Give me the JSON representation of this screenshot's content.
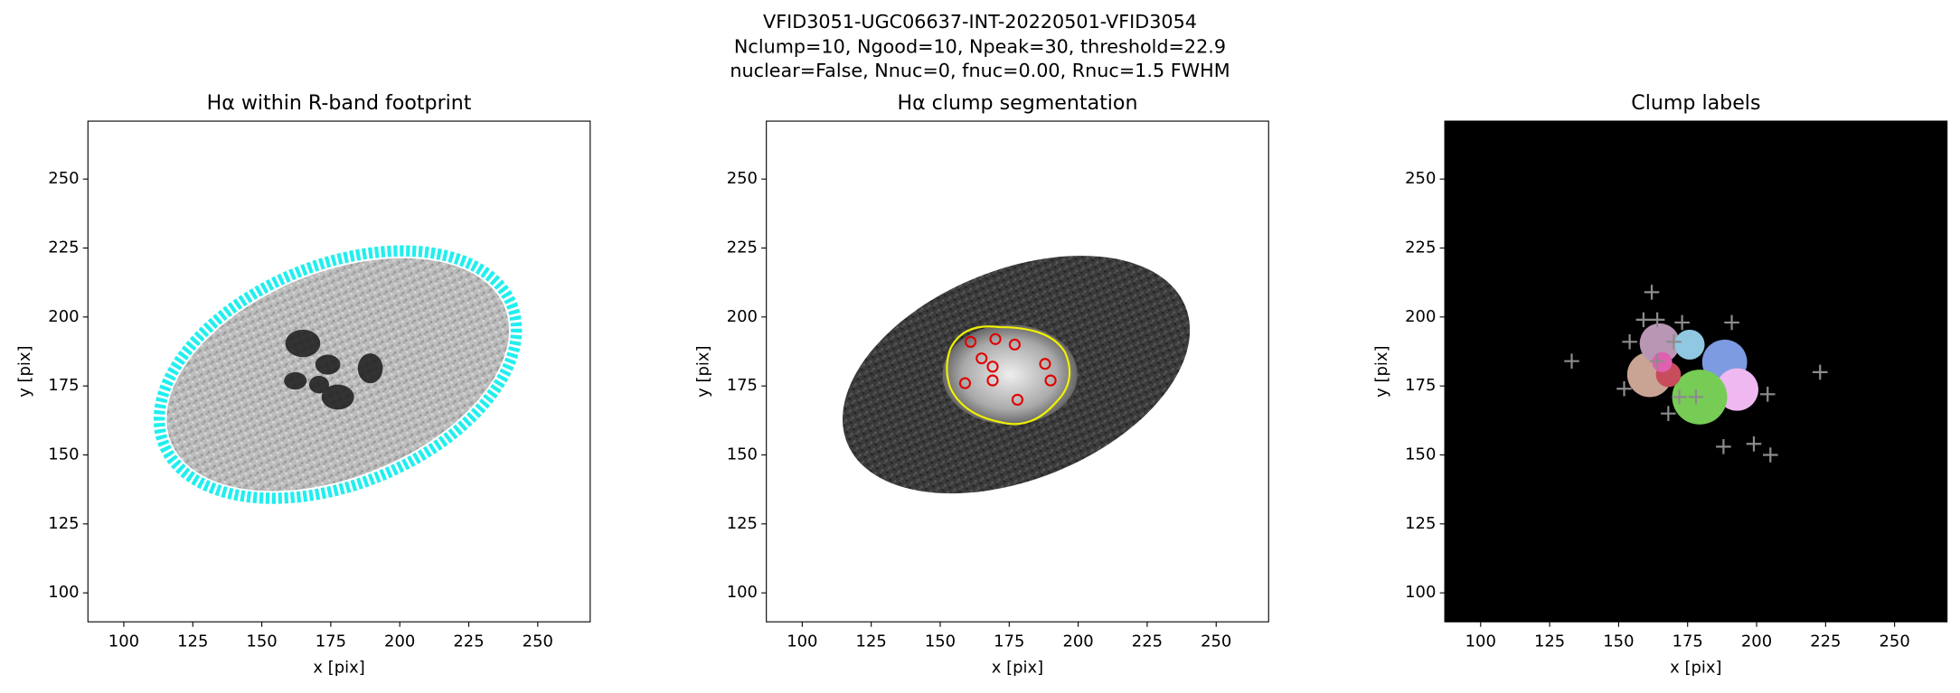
{
  "suptitle": [
    "VFID3051-UGC06637-INT-20220501-VFID3054",
    "Nclump=10, Ngood=10, Npeak=30, threshold=22.9",
    "nuclear=False, Nnuc=0, fnuc=0.00, Rnuc=1.5 FWHM"
  ],
  "chart_data": [
    {
      "type": "image",
      "title": "Hα within R-band footprint",
      "xlabel": "x [pix]",
      "ylabel": "y [pix]",
      "xlim": [
        87,
        269
      ],
      "ylim": [
        89.5,
        271
      ],
      "xticks": [
        100,
        125,
        150,
        175,
        200,
        225,
        250
      ],
      "yticks": [
        100,
        125,
        150,
        175,
        200,
        225,
        250
      ]
    },
    {
      "type": "image",
      "title": "Hα clump segmentation",
      "xlabel": "x [pix]",
      "ylabel": "y [pix]",
      "xlim": [
        87,
        269
      ],
      "ylim": [
        89.5,
        271
      ],
      "xticks": [
        100,
        125,
        150,
        175,
        200,
        225,
        250
      ],
      "yticks": [
        100,
        125,
        150,
        175,
        200,
        225,
        250
      ],
      "marker": "circle",
      "marker_color": "#e00000",
      "points": {
        "x": [
          161,
          170,
          177,
          165,
          169,
          188,
          159,
          169,
          190,
          178
        ],
        "y": [
          191,
          192,
          190,
          185,
          182,
          183,
          176,
          177,
          177,
          170
        ]
      }
    },
    {
      "type": "image",
      "title": "Clump labels",
      "xlabel": "x [pix]",
      "ylabel": "y [pix]",
      "xlim": [
        87,
        269
      ],
      "ylim": [
        89.5,
        271
      ],
      "xticks": [
        100,
        125,
        150,
        175,
        200,
        225,
        250
      ],
      "yticks": [
        100,
        125,
        150,
        175,
        200,
        225,
        250
      ],
      "marker": "plus",
      "marker_color": "#8c8c8c",
      "points": {
        "x": [
          162,
          159,
          164,
          173,
          191,
          154,
          170,
          133,
          164,
          152,
          172,
          178,
          204,
          168,
          188,
          199,
          205,
          223
        ],
        "y": [
          209,
          199,
          199,
          198,
          198,
          191,
          191,
          184,
          184,
          174,
          171,
          171,
          172,
          165,
          153,
          154,
          150,
          180
        ]
      }
    }
  ]
}
